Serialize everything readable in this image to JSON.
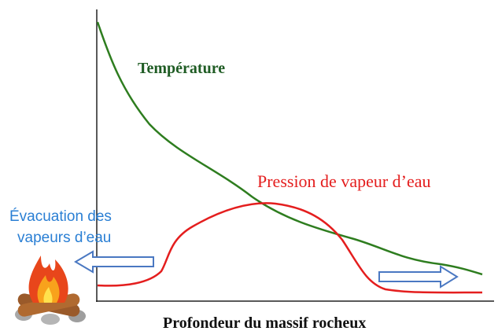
{
  "labels": {
    "temperature": "Température",
    "pressure": "Pression de vapeur d’eau",
    "evacuation": [
      "Évacuation des",
      "vapeurs d’eau"
    ],
    "x_axis": "Profondeur du massif rocheux"
  }
}
